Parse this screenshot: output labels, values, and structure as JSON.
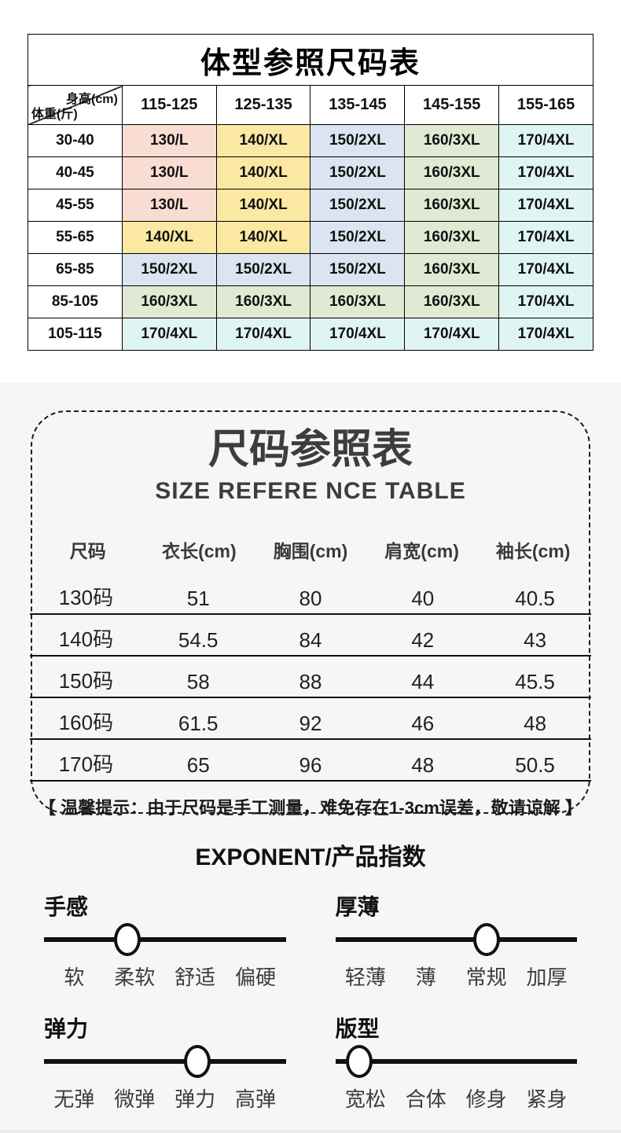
{
  "colors": {
    "section_bg": "#f6f6f8",
    "table_border": "#000000",
    "pink": "#f9dcd2",
    "yellow": "#fbe8a2",
    "blue": "#dbe5f1",
    "green": "#dfe9d3",
    "cyan": "#def5f2"
  },
  "body_type_table": {
    "title": "体型参照尺码表",
    "corner": {
      "top_right": "身高(cm)",
      "bottom_left": "体重(斤)"
    },
    "height_headers": [
      "115-125",
      "125-135",
      "135-145",
      "145-155",
      "155-165"
    ],
    "rows": [
      {
        "weight": "30-40",
        "cells": [
          {
            "t": "130/L",
            "c": "pink"
          },
          {
            "t": "140/XL",
            "c": "yellow"
          },
          {
            "t": "150/2XL",
            "c": "blue"
          },
          {
            "t": "160/3XL",
            "c": "green"
          },
          {
            "t": "170/4XL",
            "c": "cyan"
          }
        ]
      },
      {
        "weight": "40-45",
        "cells": [
          {
            "t": "130/L",
            "c": "pink"
          },
          {
            "t": "140/XL",
            "c": "yellow"
          },
          {
            "t": "150/2XL",
            "c": "blue"
          },
          {
            "t": "160/3XL",
            "c": "green"
          },
          {
            "t": "170/4XL",
            "c": "cyan"
          }
        ]
      },
      {
        "weight": "45-55",
        "cells": [
          {
            "t": "130/L",
            "c": "pink"
          },
          {
            "t": "140/XL",
            "c": "yellow"
          },
          {
            "t": "150/2XL",
            "c": "blue"
          },
          {
            "t": "160/3XL",
            "c": "green"
          },
          {
            "t": "170/4XL",
            "c": "cyan"
          }
        ]
      },
      {
        "weight": "55-65",
        "cells": [
          {
            "t": "140/XL",
            "c": "yellow"
          },
          {
            "t": "140/XL",
            "c": "yellow"
          },
          {
            "t": "150/2XL",
            "c": "blue"
          },
          {
            "t": "160/3XL",
            "c": "green"
          },
          {
            "t": "170/4XL",
            "c": "cyan"
          }
        ]
      },
      {
        "weight": "65-85",
        "cells": [
          {
            "t": "150/2XL",
            "c": "blue"
          },
          {
            "t": "150/2XL",
            "c": "blue"
          },
          {
            "t": "150/2XL",
            "c": "blue"
          },
          {
            "t": "160/3XL",
            "c": "green"
          },
          {
            "t": "170/4XL",
            "c": "cyan"
          }
        ]
      },
      {
        "weight": "85-105",
        "cells": [
          {
            "t": "160/3XL",
            "c": "green"
          },
          {
            "t": "160/3XL",
            "c": "green"
          },
          {
            "t": "160/3XL",
            "c": "green"
          },
          {
            "t": "160/3XL",
            "c": "green"
          },
          {
            "t": "170/4XL",
            "c": "cyan"
          }
        ]
      },
      {
        "weight": "105-115",
        "cells": [
          {
            "t": "170/4XL",
            "c": "cyan"
          },
          {
            "t": "170/4XL",
            "c": "cyan"
          },
          {
            "t": "170/4XL",
            "c": "cyan"
          },
          {
            "t": "170/4XL",
            "c": "cyan"
          },
          {
            "t": "170/4XL",
            "c": "cyan"
          }
        ]
      }
    ]
  },
  "size_table": {
    "title": "尺码参照表",
    "subtitle": "SIZE REFERE NCE TABLE",
    "headers": [
      "尺码",
      "衣长(cm)",
      "胸围(cm)",
      "肩宽(cm)",
      "袖长(cm)"
    ],
    "rows": [
      [
        "130码",
        "51",
        "80",
        "40",
        "40.5"
      ],
      [
        "140码",
        "54.5",
        "84",
        "42",
        "43"
      ],
      [
        "150码",
        "58",
        "88",
        "44",
        "45.5"
      ],
      [
        "160码",
        "61.5",
        "92",
        "46",
        "48"
      ],
      [
        "170码",
        "65",
        "96",
        "48",
        "50.5"
      ]
    ],
    "note": "【 温馨提示：由于尺码是手工测量，难免存在1-3cm误差，敬请谅解 】"
  },
  "exponent": {
    "heading": "EXPONENT/产品指数",
    "sliders": [
      {
        "name": "手感",
        "labels": [
          "软",
          "柔软",
          "舒适",
          "偏硬"
        ],
        "value": "柔软",
        "knob_left": "34.5%"
      },
      {
        "name": "厚薄",
        "labels": [
          "轻薄",
          "薄",
          "常规",
          "加厚"
        ],
        "value": "常规",
        "knob_left": "62.5%"
      },
      {
        "name": "弹力",
        "labels": [
          "无弹",
          "微弹",
          "弹力",
          "高弹"
        ],
        "value": "弹力",
        "knob_left": "63.5%"
      },
      {
        "name": "版型",
        "labels": [
          "宽松",
          "合体",
          "修身",
          "紧身"
        ],
        "value": "宽松",
        "knob_left": "10%"
      }
    ]
  }
}
